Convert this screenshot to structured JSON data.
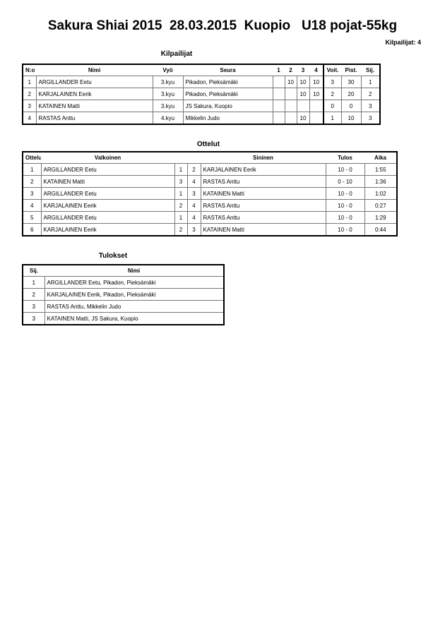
{
  "header": {
    "title": "Sakura Shiai 2015  28.03.2015  Kuopio   U18 pojat-55kg",
    "count": "Kilpailijat: 4"
  },
  "competitors": {
    "title": "Kilpailijat",
    "columns": [
      "N:o",
      "Nimi",
      "Vyö",
      "Seura",
      "1",
      "2",
      "3",
      "4",
      "Voit.",
      "Pist.",
      "Sij."
    ],
    "rows": [
      [
        "1",
        "ARGILLANDER Eetu",
        "3.kyu",
        "Pikadon, Pieksämäki",
        "",
        "10",
        "10",
        "10",
        "3",
        "30",
        "1"
      ],
      [
        "2",
        "KARJALAINEN Eerik",
        "3.kyu",
        "Pikadon, Pieksämäki",
        "",
        "",
        "10",
        "10",
        "2",
        "20",
        "2"
      ],
      [
        "3",
        "KATAINEN Matti",
        "3.kyu",
        "JS Sakura, Kuopio",
        "",
        "",
        "",
        "",
        "0",
        "0",
        "3"
      ],
      [
        "4",
        "RASTAS Anttu",
        "4.kyu",
        "Mikkelin Judo",
        "",
        "",
        "10",
        "",
        "1",
        "10",
        "3"
      ]
    ]
  },
  "matches": {
    "title": "Ottelut",
    "columns": [
      "Ottelu",
      "Valkoinen",
      "",
      "",
      "Sininen",
      "Tulos",
      "Aika"
    ],
    "rows": [
      [
        "1",
        "ARGILLANDER Eetu",
        "1",
        "2",
        "KARJALAINEN Eerik",
        "10 - 0",
        "1:55"
      ],
      [
        "2",
        "KATAINEN Matti",
        "3",
        "4",
        "RASTAS Anttu",
        "0 - 10",
        "1:36"
      ],
      [
        "3",
        "ARGILLANDER Eetu",
        "1",
        "3",
        "KATAINEN Matti",
        "10 - 0",
        "1:02"
      ],
      [
        "4",
        "KARJALAINEN Eerik",
        "2",
        "4",
        "RASTAS Anttu",
        "10 - 0",
        "0:27"
      ],
      [
        "5",
        "ARGILLANDER Eetu",
        "1",
        "4",
        "RASTAS Anttu",
        "10 - 0",
        "1:29"
      ],
      [
        "6",
        "KARJALAINEN Eerik",
        "2",
        "3",
        "KATAINEN Matti",
        "10 - 0",
        "0:44"
      ]
    ]
  },
  "results": {
    "title": "Tulokset",
    "columns": [
      "Sij.",
      "Nimi"
    ],
    "rows": [
      [
        "1",
        "ARGILLANDER Eetu, Pikadon, Pieksämäki"
      ],
      [
        "2",
        "KARJALAINEN Eerik, Pikadon, Pieksämäki"
      ],
      [
        "3",
        "RASTAS Anttu, Mikkelin Judo"
      ],
      [
        "3",
        "KATAINEN Matti, JS Sakura, Kuopio"
      ]
    ]
  }
}
